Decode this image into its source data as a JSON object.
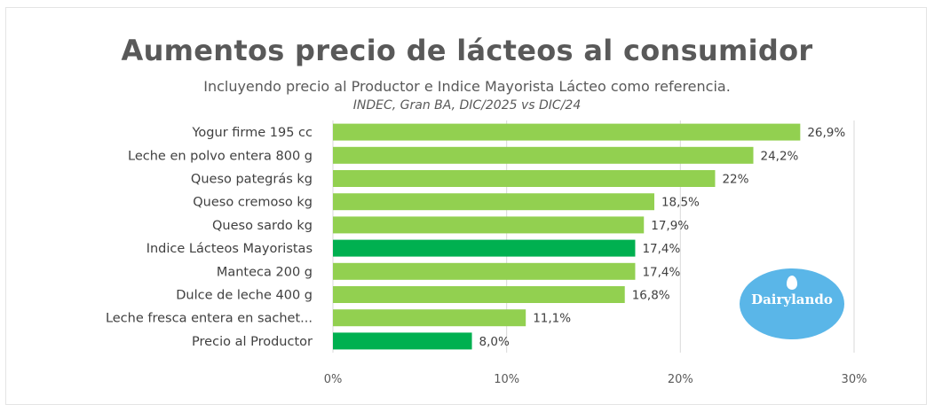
{
  "chart_data": {
    "type": "bar",
    "orientation": "horizontal",
    "title": "Aumentos precio de lácteos al consumidor",
    "subtitle": "Incluyendo precio al Productor e Indice Mayorista Lácteo como referencia.",
    "source_note": "INDEC, Gran BA, DIC/2025 vs DIC/24",
    "categories": [
      "Yogur firme 195 cc",
      "Leche en polvo entera 800 g",
      "Queso pategrás kg",
      "Queso cremoso kg",
      "Queso sardo kg",
      "Indice Lácteos Mayoristas",
      "Manteca 200 g",
      "Dulce de leche 400 g",
      "Leche fresca entera en sachet...",
      "Precio al Productor"
    ],
    "values": [
      26.9,
      24.2,
      22.0,
      18.5,
      17.9,
      17.4,
      17.4,
      16.8,
      11.1,
      8.0
    ],
    "value_labels": [
      "26,9%",
      "24,2%",
      "22%",
      "18,5%",
      "17,9%",
      "17,4%",
      "17,4%",
      "16,8%",
      "11,1%",
      "8,0%"
    ],
    "highlighted": [
      "Indice Lácteos Mayoristas",
      "Precio al Productor"
    ],
    "xlim": [
      0,
      30
    ],
    "xticks": [
      0,
      10,
      20,
      30
    ],
    "xtick_labels": [
      "0%",
      "10%",
      "20%",
      "30%"
    ],
    "grid": true,
    "colors": {
      "bar": "#92d050",
      "highlight": "#00b050",
      "text": "#595959",
      "grid": "#d9d9d9"
    }
  },
  "logo": {
    "text": "Dairylando",
    "color": "#5ab6e8"
  }
}
